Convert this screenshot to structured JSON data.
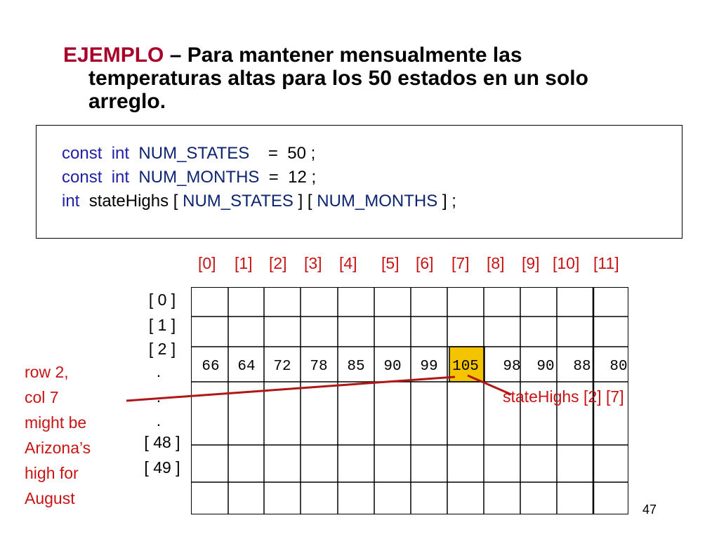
{
  "title": {
    "keyword": "EJEMPLO",
    "line1": " – Para mantener mensualmente las",
    "line2": "temperaturas altas para los 50 estados en un solo",
    "line3": "arreglo."
  },
  "code": {
    "line1": {
      "kw1": "const",
      "kw2": "int",
      "ident": "NUM_STATES",
      "rest": "=  50 ;"
    },
    "line2": {
      "kw1": "const",
      "kw2": "int",
      "ident": "NUM_MONTHS",
      "rest": "=  12 ;"
    },
    "line3": {
      "kw": "int",
      "name": "stateHighs [",
      "ident1": "NUM_STATES",
      "mid": "] [",
      "ident2": "NUM_MONTHS",
      "end": "] ;"
    }
  },
  "column_headers": [
    "[0]",
    "[1]",
    "[2]",
    "[3]",
    "[4]",
    "[5]",
    "[6]",
    "[7]",
    "[8]",
    "[9]",
    "[10]",
    "[11]"
  ],
  "row_labels": [
    "[ 0 ]",
    "[ 1 ]",
    "[ 2 ]",
    ".",
    ".",
    ".",
    "[ 48 ]",
    "[ 49 ]"
  ],
  "row2_values": [
    "66",
    "64",
    "72",
    "78",
    "85",
    "90",
    "99",
    "105",
    "98",
    "90",
    "88",
    "80"
  ],
  "highlight": {
    "row": 2,
    "col": 7,
    "color": "#f5c400"
  },
  "annotation_left": [
    "row 2,",
    "col 7",
    "might be",
    "Arizona’s",
    "high for",
    "August"
  ],
  "annotation_right": "stateHighs [2] [7]",
  "page_number": "47",
  "colors": {
    "accent_red": "#c81414",
    "title_red": "#a8002a",
    "code_blue": "#1f1fa8",
    "code_navy": "#0d2470"
  }
}
